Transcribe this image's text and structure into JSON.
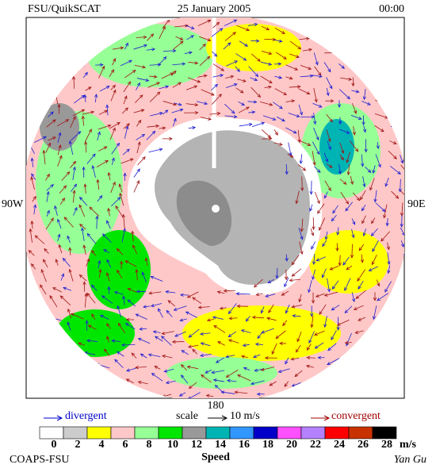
{
  "header": {
    "left": "FSU/QuikSCAT",
    "center": "25 January 2005",
    "right": "00:00"
  },
  "map": {
    "labels": {
      "west": "90W",
      "east": "90E",
      "south": "180"
    }
  },
  "legend": {
    "divergent": "divergent",
    "scale": "scale",
    "scale_value": "10 m/s",
    "convergent": "convergent"
  },
  "colorbar": {
    "title": "Speed",
    "unit": "m/s",
    "ticks": [
      0,
      2,
      4,
      6,
      8,
      10,
      12,
      14,
      16,
      18,
      20,
      22,
      24,
      26,
      28
    ],
    "colors": [
      "#ffffff",
      "#cccccc",
      "#ffff00",
      "#ffc8c8",
      "#96ff96",
      "#00e600",
      "#999999",
      "#00b4b4",
      "#3296ff",
      "#0000c8",
      "#ff50ff",
      "#b482ff",
      "#ff0000",
      "#c83200",
      "#000000"
    ]
  },
  "footer": {
    "left": "COAPS-FSU",
    "right": "Yan Gu"
  }
}
